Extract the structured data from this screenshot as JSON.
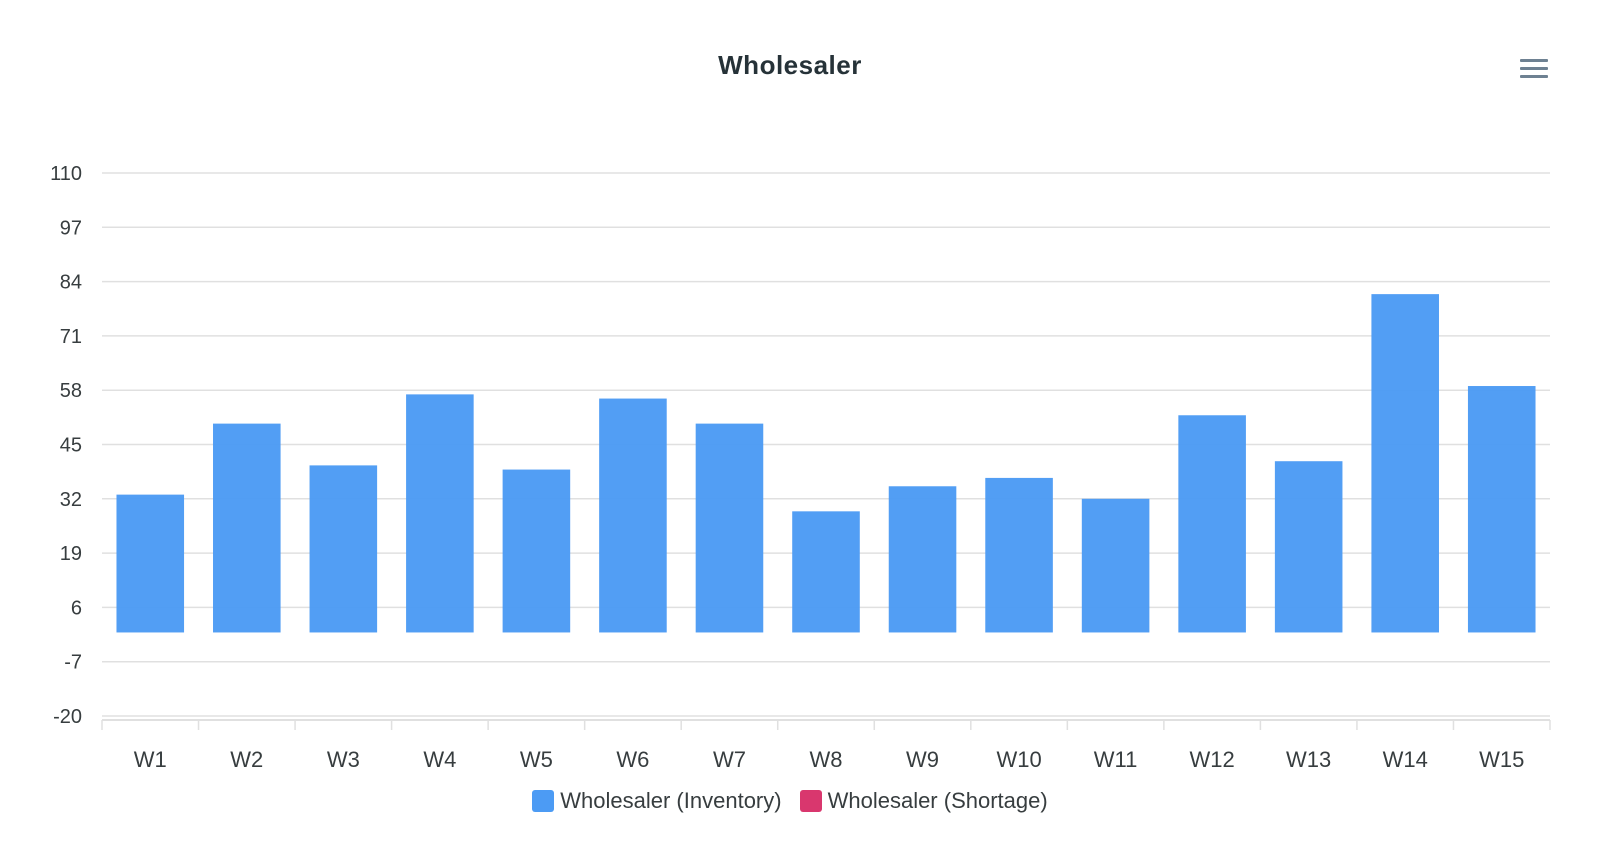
{
  "chart_data": {
    "type": "bar",
    "title": "Wholesaler",
    "categories": [
      "W1",
      "W2",
      "W3",
      "W4",
      "W5",
      "W6",
      "W7",
      "W8",
      "W9",
      "W10",
      "W11",
      "W12",
      "W13",
      "W14",
      "W15"
    ],
    "series": [
      {
        "name": "Wholesaler (Inventory)",
        "color": "#4c9bf4",
        "values": [
          33,
          50,
          40,
          57,
          39,
          56,
          50,
          29,
          35,
          37,
          32,
          52,
          41,
          81,
          59
        ]
      },
      {
        "name": "Wholesaler (Shortage)",
        "color": "#d9376e",
        "values": [
          0,
          0,
          0,
          0,
          0,
          0,
          0,
          0,
          0,
          0,
          0,
          0,
          0,
          0,
          0
        ]
      }
    ],
    "yticks": [
      110,
      97,
      84,
      71,
      58,
      45,
      32,
      19,
      6,
      -7,
      -20
    ],
    "ylim": [
      -20,
      110
    ],
    "xlabel": "",
    "ylabel": "",
    "grid": true,
    "legend_position": "bottom"
  },
  "toolbar": {
    "menu_icon": "hamburger-menu-icon"
  }
}
